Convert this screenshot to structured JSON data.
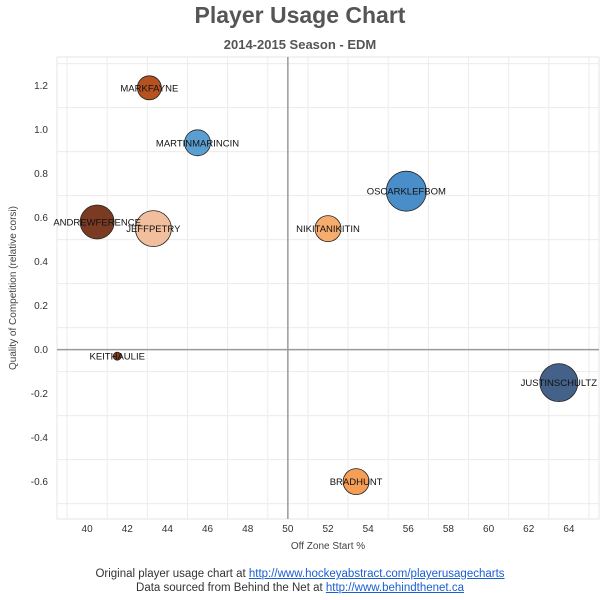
{
  "chart_data": {
    "type": "scatter",
    "title": "Player Usage Chart",
    "subtitle": "2014-2015 Season - EDM",
    "xlabel": "Off Zone Start %",
    "ylabel": "Quality of Competition (relative corsi)",
    "xlim": [
      38.5,
      65.5
    ],
    "ylim": [
      -0.77,
      1.33
    ],
    "xticks": [
      40,
      42,
      44,
      46,
      48,
      50,
      52,
      54,
      56,
      58,
      60,
      62,
      64
    ],
    "yticks": [
      -0.6,
      -0.4,
      -0.2,
      0.0,
      0.2,
      0.4,
      0.6,
      0.8,
      1.0,
      1.2
    ],
    "ytick_labels": [
      "-0.6",
      "-0.4",
      "-0.2",
      "0.0",
      "0.2",
      "0.4",
      "0.6",
      "0.8",
      "1.0",
      "1.2"
    ],
    "reference_lines": {
      "x": 50,
      "y": 0
    },
    "grid": true,
    "points": [
      {
        "label": "MARKFAYNE",
        "x": 43.1,
        "y": 1.19,
        "size": 12,
        "color": "#b5521f"
      },
      {
        "label": "MARTINMARINCIN",
        "x": 45.5,
        "y": 0.94,
        "size": 13,
        "color": "#5b9fd2"
      },
      {
        "label": "OSCARKLEFBOM",
        "x": 55.9,
        "y": 0.72,
        "size": 20,
        "color": "#4a8ec9"
      },
      {
        "label": "ANDREWFERENCE",
        "x": 40.5,
        "y": 0.58,
        "size": 17,
        "color": "#7a3b22"
      },
      {
        "label": "JEFFPETRY",
        "x": 43.3,
        "y": 0.55,
        "size": 18,
        "color": "#f1bf9d"
      },
      {
        "label": "NIKITANIKITIN",
        "x": 52.0,
        "y": 0.55,
        "size": 13,
        "color": "#f6ac6c"
      },
      {
        "label": "KEITHAULIE",
        "x": 41.5,
        "y": -0.03,
        "size": 4,
        "color": "#8a3c1c"
      },
      {
        "label": "JUSTINSCHULTZ",
        "x": 63.5,
        "y": -0.15,
        "size": 19,
        "color": "#44618a"
      },
      {
        "label": "BRADHUNT",
        "x": 53.4,
        "y": -0.6,
        "size": 13,
        "color": "#f59e55"
      }
    ]
  },
  "footer": {
    "line1_text": "Original player usage chart at ",
    "line1_link": "http://www.hockeyabstract.com/playerusagecharts",
    "line2_text": "Data sourced from Behind the Net at ",
    "line2_link": "http://www.behindthenet.ca"
  }
}
